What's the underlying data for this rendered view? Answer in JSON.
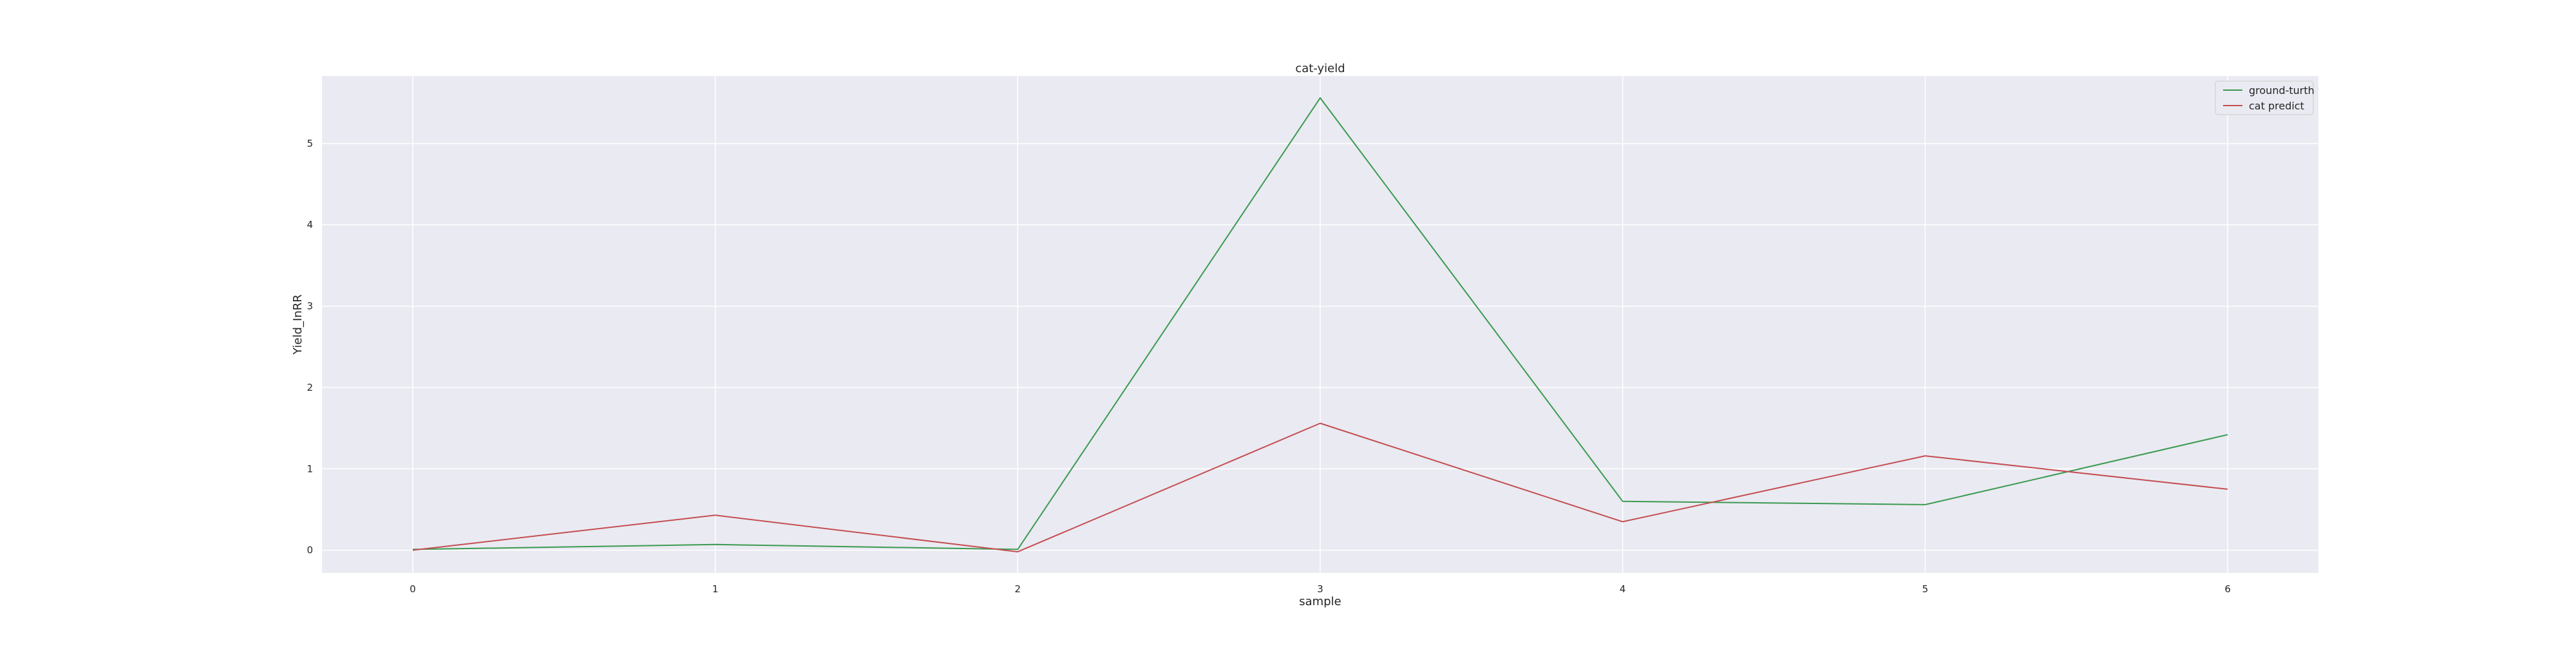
{
  "chart_data": {
    "type": "line",
    "title": "cat-yield",
    "xlabel": "sample",
    "ylabel": "Yield_InRR",
    "x": [
      0,
      1,
      2,
      3,
      4,
      5,
      6
    ],
    "xticks": [
      "0",
      "1",
      "2",
      "3",
      "4",
      "5",
      "6"
    ],
    "yticks": [
      "0",
      "1",
      "2",
      "3",
      "4",
      "5"
    ],
    "xlim": [
      -0.3,
      6.3
    ],
    "ylim": [
      -0.28,
      5.83
    ],
    "grid": true,
    "legend_position": "top-right",
    "series": [
      {
        "name": "ground-turth",
        "color": "#3b9a50",
        "values": [
          0.01,
          0.07,
          0.01,
          5.56,
          0.6,
          0.56,
          1.42
        ]
      },
      {
        "name": "cat predict",
        "color": "#c44e52",
        "values": [
          0.0,
          0.43,
          -0.02,
          1.56,
          0.35,
          1.16,
          0.75
        ]
      }
    ],
    "colors": {
      "plot_background": "#eaeaf2",
      "grid": "#ffffff"
    }
  }
}
